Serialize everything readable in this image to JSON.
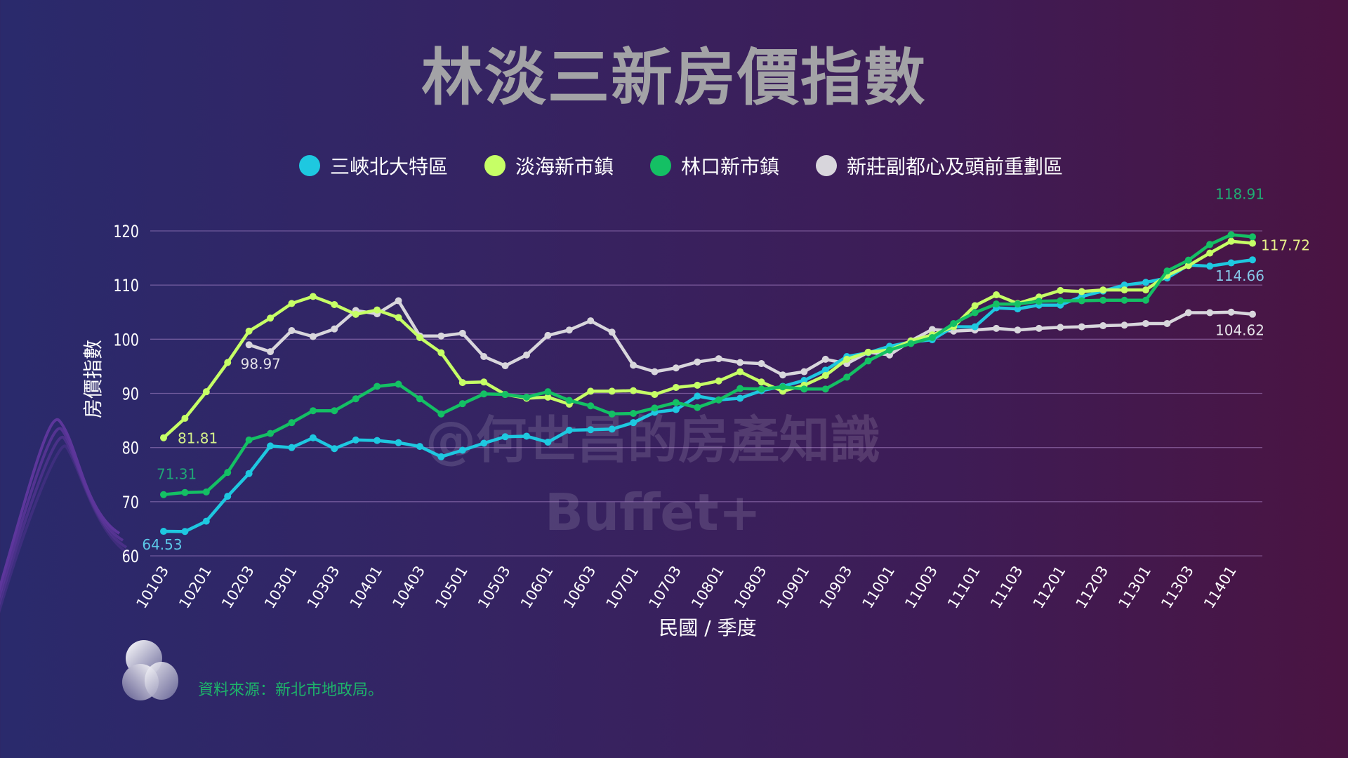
{
  "title": "林淡三新房價指數",
  "legend": [
    {
      "label": "三峽北大特區",
      "color": "#1ec8e0"
    },
    {
      "label": "淡海新市鎮",
      "color": "#c6ff66"
    },
    {
      "label": "林口新市鎮",
      "color": "#14c064"
    },
    {
      "label": "新莊副都心及頭前重劃區",
      "color": "#d8d6dc"
    }
  ],
  "source": "資料來源：新北市地政局。",
  "watermark": {
    "line1": "@何世昌的房產知識",
    "line2": "Buffet+"
  },
  "chart_data": {
    "type": "line",
    "title": "林淡三新房價指數",
    "xlabel": "民國 / 季度",
    "ylabel": "房價指數",
    "ylim": [
      60,
      120
    ],
    "yticks": [
      60,
      70,
      80,
      90,
      100,
      110,
      120
    ],
    "grid": true,
    "legend_position": "top-center",
    "x": [
      "10103",
      "10104",
      "10201",
      "10202",
      "10203",
      "10204",
      "10301",
      "10302",
      "10303",
      "10304",
      "10401",
      "10402",
      "10403",
      "10404",
      "10501",
      "10502",
      "10503",
      "10504",
      "10601",
      "10602",
      "10603",
      "10604",
      "10701",
      "10702",
      "10703",
      "10704",
      "10801",
      "10802",
      "10803",
      "10804",
      "10901",
      "10902",
      "10903",
      "10904",
      "11001",
      "11002",
      "11003",
      "11004",
      "11101",
      "11102",
      "11103",
      "11104",
      "11201",
      "11202",
      "11203",
      "11204",
      "11301",
      "11302",
      "11303",
      "11304",
      "11401",
      "11402"
    ],
    "xtick_labels": [
      "10103",
      "10201",
      "10203",
      "10301",
      "10303",
      "10401",
      "10403",
      "10501",
      "10503",
      "10601",
      "10603",
      "10701",
      "10703",
      "10801",
      "10803",
      "10901",
      "10903",
      "11001",
      "11003",
      "11101",
      "11103",
      "11201",
      "11203",
      "11301",
      "11303",
      "11401"
    ],
    "series": [
      {
        "name": "三峽北大特區",
        "color": "#1ec8e0",
        "values": [
          64.53,
          64.5,
          66.4,
          71.0,
          75.2,
          80.3,
          80.0,
          81.8,
          79.8,
          81.4,
          81.3,
          80.9,
          80.2,
          78.3,
          79.5,
          80.8,
          82.0,
          82.1,
          81.0,
          83.2,
          83.3,
          83.4,
          84.6,
          86.5,
          87.0,
          89.5,
          88.8,
          89.1,
          90.5,
          91.3,
          92.4,
          94.3,
          96.8,
          97.5,
          98.7,
          99.5,
          99.9,
          102.3,
          102.3,
          105.8,
          105.6,
          106.3,
          106.3,
          107.9,
          108.9,
          110.0,
          110.5,
          111.3,
          113.7,
          113.5,
          114.1,
          114.66
        ]
      },
      {
        "name": "淡海新市鎮",
        "color": "#c6ff66",
        "values": [
          81.81,
          85.4,
          90.3,
          95.7,
          101.5,
          103.9,
          106.6,
          107.9,
          106.4,
          104.6,
          105.4,
          104.0,
          100.3,
          97.5,
          92.0,
          92.1,
          89.8,
          89.1,
          89.3,
          88.0,
          90.4,
          90.4,
          90.5,
          89.8,
          91.1,
          91.5,
          92.3,
          94.0,
          92.1,
          90.4,
          91.5,
          93.3,
          96.3,
          97.6,
          98.0,
          99.7,
          100.8,
          102.3,
          106.2,
          108.2,
          106.6,
          107.8,
          109.0,
          108.8,
          109.1,
          109.1,
          109.1,
          111.8,
          113.6,
          115.9,
          118.1,
          117.72
        ]
      },
      {
        "name": "林口新市鎮",
        "color": "#14c064",
        "values": [
          71.31,
          71.7,
          71.8,
          75.4,
          81.4,
          82.6,
          84.6,
          86.8,
          86.8,
          89.0,
          91.3,
          91.7,
          89.0,
          86.2,
          88.1,
          89.9,
          89.8,
          89.3,
          90.3,
          88.7,
          87.7,
          86.2,
          86.3,
          87.3,
          88.3,
          87.4,
          88.8,
          90.9,
          90.8,
          91.2,
          90.8,
          90.8,
          93.0,
          96.0,
          98.0,
          99.2,
          100.3,
          102.9,
          104.9,
          106.5,
          106.5,
          107.0,
          107.1,
          107.1,
          107.2,
          107.2,
          107.2,
          112.6,
          114.6,
          117.5,
          119.3,
          118.91
        ]
      },
      {
        "name": "新莊副都心及頭前重劃區",
        "color": "#d8d6dc",
        "values": [
          null,
          null,
          null,
          null,
          98.97,
          97.7,
          101.6,
          100.5,
          101.9,
          105.3,
          104.7,
          107.1,
          100.6,
          100.6,
          101.1,
          96.8,
          95.1,
          97.1,
          100.7,
          101.7,
          103.4,
          101.3,
          95.2,
          94.0,
          94.7,
          95.8,
          96.4,
          95.7,
          95.5,
          93.4,
          94.0,
          96.3,
          95.5,
          97.6,
          97.1,
          99.7,
          101.8,
          101.5,
          101.7,
          102.0,
          101.7,
          102.0,
          102.2,
          102.3,
          102.5,
          102.6,
          102.9,
          102.9,
          104.9,
          104.9,
          105.0,
          104.62
        ]
      }
    ],
    "annotations": [
      {
        "series": 0,
        "index": 0,
        "text": "64.53",
        "color": "#5cc8e8"
      },
      {
        "series": 1,
        "index": 0,
        "text": "81.81",
        "color": "#d4f08a"
      },
      {
        "series": 2,
        "index": 0,
        "text": "71.31",
        "color": "#1fa676"
      },
      {
        "series": 3,
        "index": 4,
        "text": "98.97",
        "color": "#e4e2e8"
      },
      {
        "series": 2,
        "index": 51,
        "text": "118.91",
        "color": "#1fae73"
      },
      {
        "series": 1,
        "index": 51,
        "text": "117.72",
        "color": "#e6f08a"
      },
      {
        "series": 0,
        "index": 51,
        "text": "114.66",
        "color": "#86c8e8"
      },
      {
        "series": 3,
        "index": 51,
        "text": "104.62",
        "color": "#e4e2e8"
      }
    ]
  }
}
